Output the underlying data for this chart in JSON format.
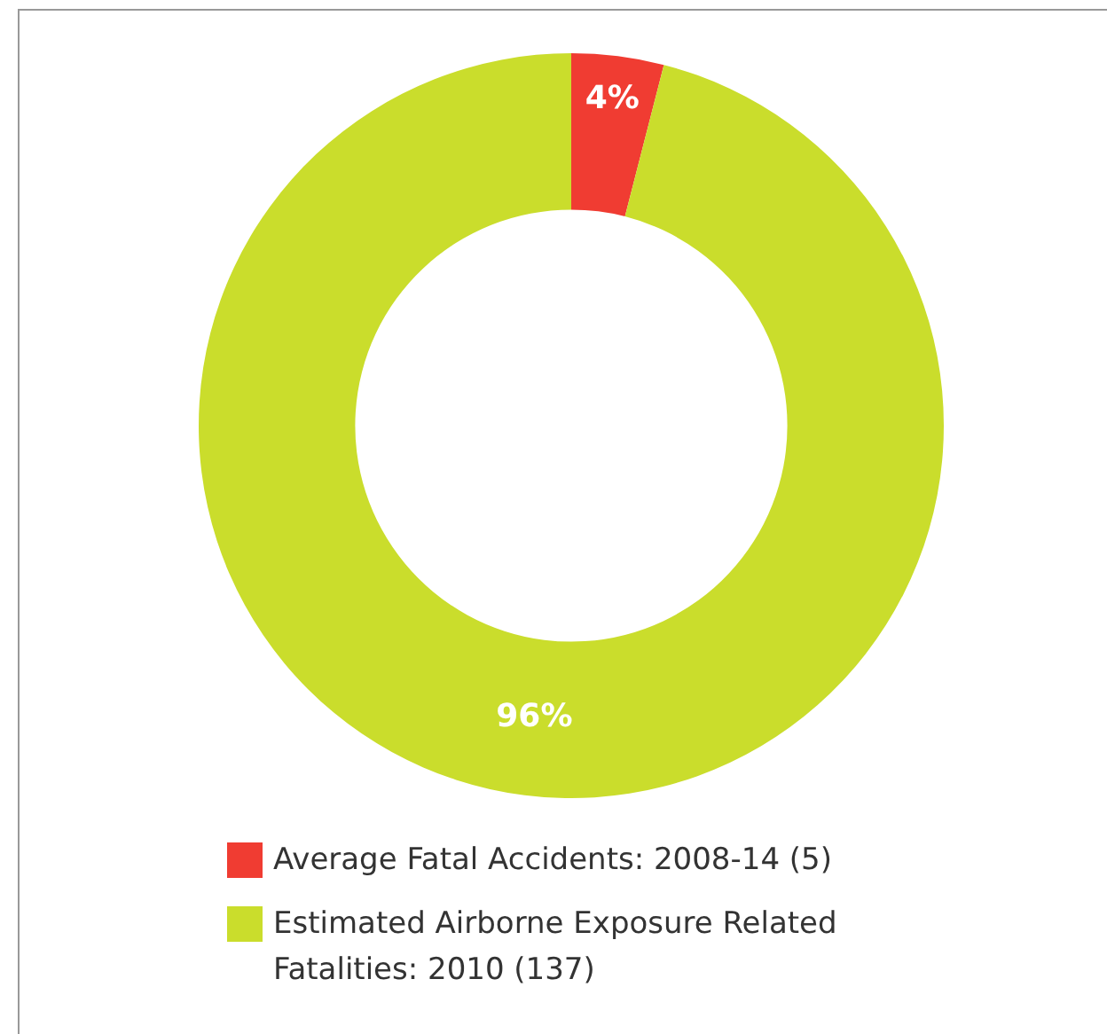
{
  "chart_data": {
    "type": "donut",
    "categories": [
      "Average Fatal Accidents: 2008-14 (5)",
      "Estimated Airborne Exposure Related Fatalities: 2010 (137)"
    ],
    "values": [
      4,
      96
    ],
    "colors": [
      "#f03c32",
      "#cadd2c"
    ],
    "value_labels": [
      "4%",
      "96%"
    ],
    "legend": "bottom"
  }
}
